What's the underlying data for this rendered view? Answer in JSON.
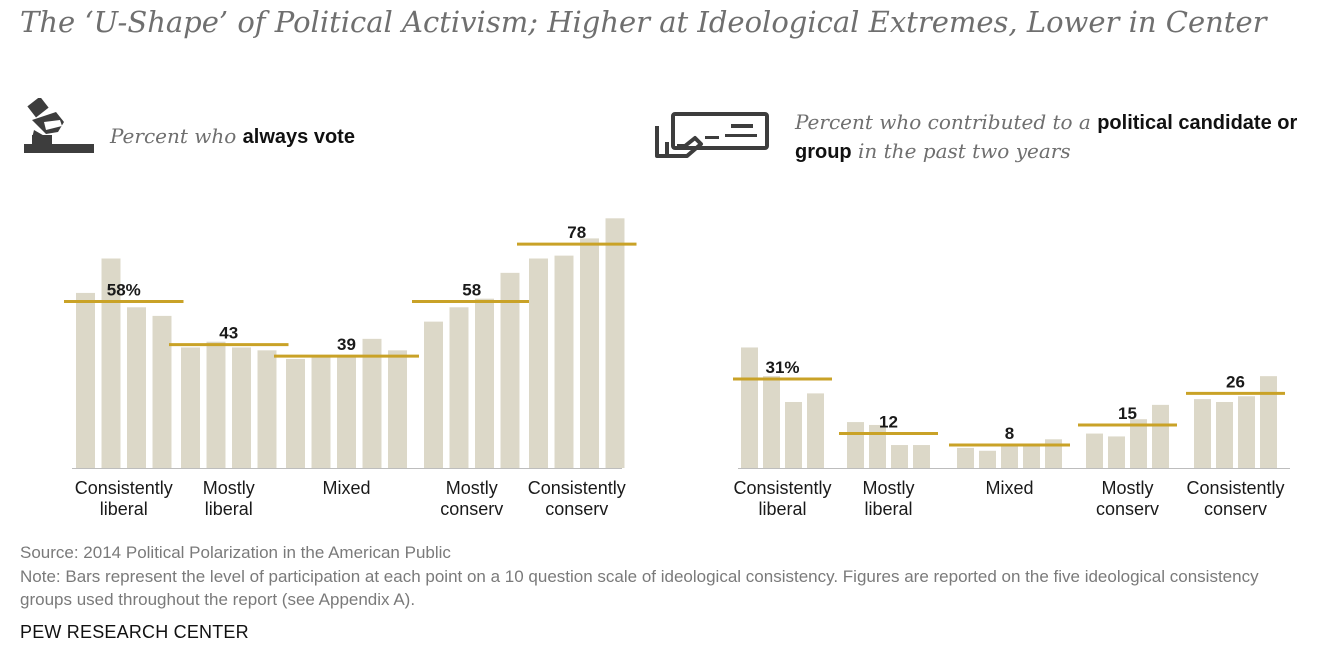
{
  "title": "The ‘U-Shape’ of Political Activism; Higher at Ideological Extremes, Lower in Center",
  "left_panel": {
    "icon": "ballot-box-icon",
    "subtitle_pre": "Percent who ",
    "subtitle_bold": "always vote"
  },
  "right_panel": {
    "icon": "check-in-hand-icon",
    "subtitle_pre": "Percent who contributed to a ",
    "subtitle_bold": "political candidate or group",
    "subtitle_post": " in the past two years"
  },
  "chart_data": [
    {
      "type": "bar",
      "title": "Percent who always vote",
      "ylim": [
        0,
        100
      ],
      "categories": [
        [
          "Consistently",
          "liberal"
        ],
        [
          "Mostly",
          "liberal"
        ],
        [
          "Mixed"
        ],
        [
          "Mostly",
          "conserv"
        ],
        [
          "Consistently",
          "conserv"
        ]
      ],
      "group_averages": [
        58,
        43,
        39,
        58,
        78
      ],
      "average_labels": [
        "58%",
        "43",
        "39",
        "58",
        "78"
      ],
      "bar_values": [
        [
          61,
          73,
          56,
          53
        ],
        [
          42,
          44,
          42,
          41
        ],
        [
          38,
          39,
          39,
          45,
          41
        ],
        [
          51,
          56,
          59,
          68
        ],
        [
          73,
          74,
          80,
          87
        ]
      ],
      "colors": {
        "bar": "#dcd8c8",
        "average_line": "#c9a227"
      },
      "grid": false
    },
    {
      "type": "bar",
      "title": "Percent who contributed to a political candidate or group in the past two years",
      "ylim": [
        0,
        100
      ],
      "categories": [
        [
          "Consistently",
          "liberal"
        ],
        [
          "Mostly",
          "liberal"
        ],
        [
          "Mixed"
        ],
        [
          "Mostly",
          "conserv"
        ],
        [
          "Consistently",
          "conserv"
        ]
      ],
      "group_averages": [
        31,
        12,
        8,
        15,
        26
      ],
      "average_labels": [
        "31%",
        "12",
        "8",
        "15",
        "26"
      ],
      "bar_values": [
        [
          42,
          32,
          23,
          26
        ],
        [
          16,
          15,
          8,
          8
        ],
        [
          7,
          6,
          8,
          8,
          10
        ],
        [
          12,
          11,
          17,
          22
        ],
        [
          24,
          23,
          25,
          32
        ]
      ],
      "colors": {
        "bar": "#dcd8c8",
        "average_line": "#c9a227"
      },
      "grid": false
    }
  ],
  "source": "Source: 2014 Political Polarization in the American Public",
  "note": "Note: Bars represent the level of participation at each point on a 10 question scale of ideological consistency. Figures are reported on the five ideological consistency groups used throughout the report (see Appendix A).",
  "brand": "PEW RESEARCH CENTER"
}
